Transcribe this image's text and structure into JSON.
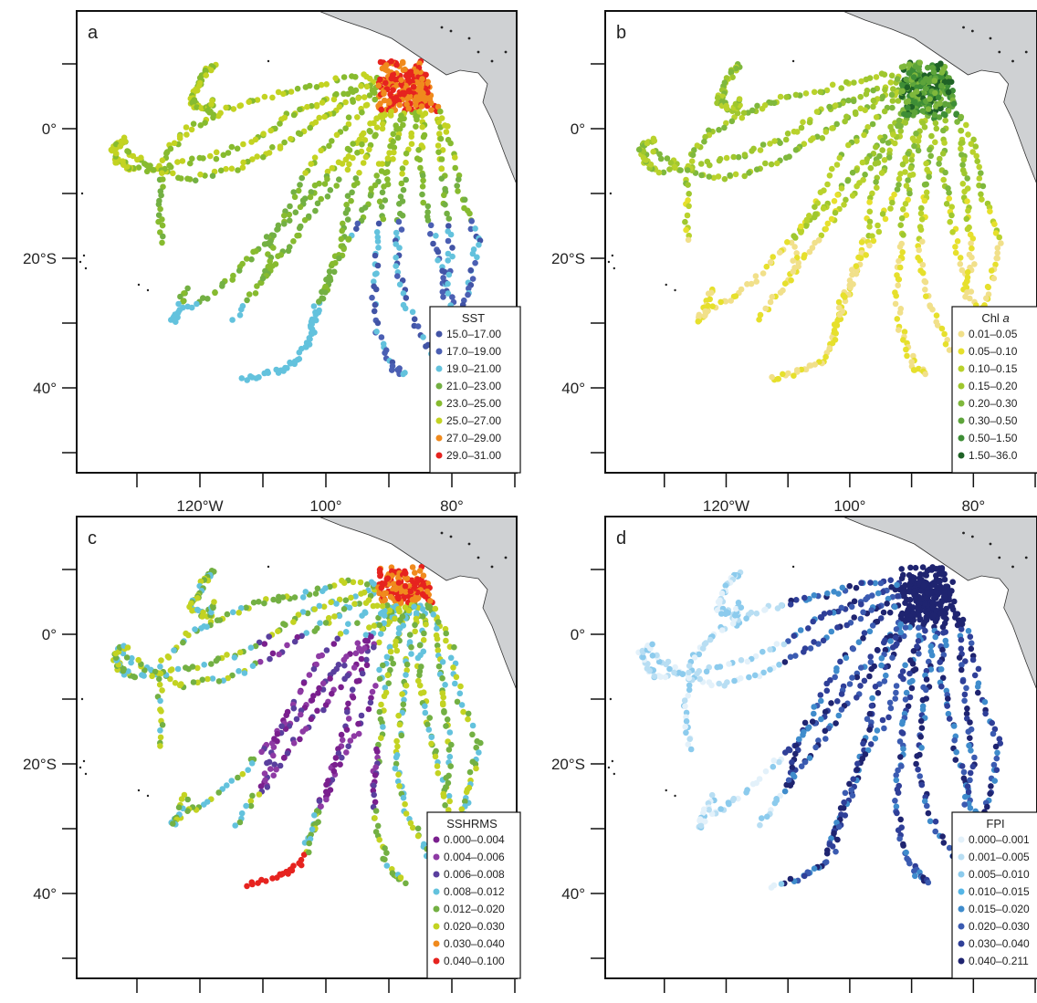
{
  "figure": {
    "x_ticks": [
      "120°W",
      "100°",
      "80°"
    ],
    "y_ticks": [
      "0°",
      "20°S",
      "40°"
    ],
    "colors": {
      "land": "#cfd1d3",
      "frame": "#111111"
    }
  },
  "panels": [
    {
      "label": "a",
      "legend_title": "SST",
      "legend_title_suffix": "",
      "legend_items": [
        "15.0–17.00",
        "17.0–19.00",
        "19.0–21.00",
        "21.0–23.00",
        "23.0–25.00",
        "25.0–27.00",
        "27.0–29.00",
        "29.0–31.00"
      ],
      "legend_colors": [
        "#4254a6",
        "#4b5fb3",
        "#63c2dd",
        "#73b043",
        "#87bb2f",
        "#c3d322",
        "#f08a1d",
        "#e6231f"
      ]
    },
    {
      "label": "b",
      "legend_title": "Chl ",
      "legend_title_suffix": "a",
      "legend_items": [
        "0.01–0.05",
        "0.05–0.10",
        "0.10–0.15",
        "0.15–0.20",
        "0.20–0.30",
        "0.30–0.50",
        "0.50–1.50",
        "1.50–36.0"
      ],
      "legend_colors": [
        "#f1e08a",
        "#e6e02c",
        "#b9d22c",
        "#9fc72e",
        "#7fb83c",
        "#5da43a",
        "#3e8e36",
        "#1f6226"
      ]
    },
    {
      "label": "c",
      "legend_title": "SSHRMS",
      "legend_title_suffix": "",
      "legend_items": [
        "0.000–0.004",
        "0.004–0.006",
        "0.006–0.008",
        "0.008–0.012",
        "0.012–0.020",
        "0.020–0.030",
        "0.030–0.040",
        "0.040–0.100"
      ],
      "legend_colors": [
        "#7a1f8e",
        "#8e3aa4",
        "#5a3f9e",
        "#63c2dd",
        "#73b043",
        "#c3d322",
        "#f08a1d",
        "#e6231f"
      ]
    },
    {
      "label": "d",
      "legend_title": "FPI",
      "legend_title_suffix": "",
      "legend_items": [
        "0.000–0.001",
        "0.001–0.005",
        "0.005–0.010",
        "0.010–0.015",
        "0.015–0.020",
        "0.020–0.030",
        "0.030–0.040",
        "0.040–0.211"
      ],
      "legend_colors": [
        "#e3f1fa",
        "#b8def3",
        "#8ccbed",
        "#55b6e7",
        "#3f8ccc",
        "#3b5bb1",
        "#2f3f98",
        "#1f2470"
      ]
    }
  ]
}
